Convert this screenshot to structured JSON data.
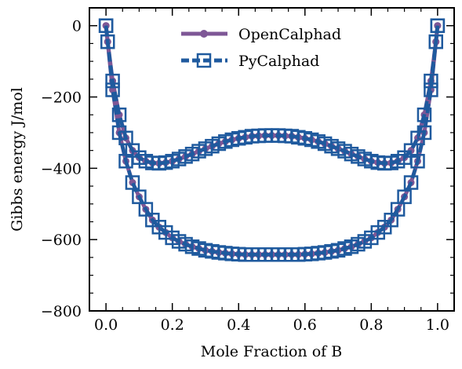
{
  "chart_data": {
    "type": "line",
    "xlabel": "Mole Fraction of B",
    "ylabel": "Gibbs energy  J/mol",
    "xlim": [
      -0.05,
      1.05
    ],
    "ylim": [
      -800,
      50
    ],
    "xticks": [
      0.0,
      0.2,
      0.4,
      0.6,
      0.8,
      1.0
    ],
    "xtick_labels": [
      "0.0",
      "0.2",
      "0.4",
      "0.6",
      "0.8",
      "1.0"
    ],
    "yticks": [
      0,
      -200,
      -400,
      -600,
      -800
    ],
    "ytick_labels": [
      "0",
      "−200",
      "−400",
      "−600",
      "−800"
    ],
    "grid": false,
    "legend_position": "top-center",
    "x": [
      0.0,
      0.005,
      0.02,
      0.04,
      0.06,
      0.08,
      0.1,
      0.12,
      0.14,
      0.16,
      0.18,
      0.2,
      0.22,
      0.24,
      0.26,
      0.28,
      0.3,
      0.32,
      0.34,
      0.36,
      0.38,
      0.4,
      0.42,
      0.44,
      0.46,
      0.48,
      0.5,
      0.52,
      0.54,
      0.56,
      0.58,
      0.6,
      0.62,
      0.64,
      0.66,
      0.68,
      0.7,
      0.72,
      0.74,
      0.76,
      0.78,
      0.8,
      0.82,
      0.84,
      0.86,
      0.88,
      0.9,
      0.92,
      0.94,
      0.96,
      0.98,
      0.995,
      1.0
    ],
    "series": [
      {
        "name": "OpenCalphad",
        "color": "#7e5796",
        "marker": "circle",
        "curves": [
          [
            0,
            -45,
            -155,
            -250,
            -315,
            -350,
            -370,
            -380,
            -385,
            -386,
            -384,
            -380,
            -374,
            -367,
            -360,
            -352,
            -345,
            -338,
            -331,
            -325,
            -320,
            -316,
            -313,
            -310,
            -309,
            -308,
            -308,
            -308,
            -309,
            -310,
            -313,
            -316,
            -320,
            -325,
            -331,
            -338,
            -345,
            -352,
            -360,
            -367,
            -374,
            -380,
            -384,
            -386,
            -385,
            -380,
            -370,
            -350,
            -315,
            -250,
            -155,
            -45,
            0
          ],
          [
            0,
            -45,
            -180,
            -300,
            -380,
            -440,
            -480,
            -515,
            -545,
            -565,
            -580,
            -595,
            -605,
            -613,
            -620,
            -625,
            -630,
            -633,
            -636,
            -638,
            -640,
            -641,
            -642,
            -642,
            -642,
            -642,
            -642,
            -642,
            -642,
            -642,
            -642,
            -641,
            -640,
            -638,
            -636,
            -633,
            -630,
            -625,
            -620,
            -613,
            -605,
            -595,
            -580,
            -565,
            -545,
            -515,
            -480,
            -440,
            -380,
            -300,
            -180,
            -45,
            0
          ]
        ]
      },
      {
        "name": "PyCalphad",
        "color": "#1f5a9e",
        "marker": "square",
        "curves": [
          [
            0,
            -45,
            -155,
            -250,
            -315,
            -350,
            -370,
            -380,
            -385,
            -386,
            -384,
            -380,
            -374,
            -367,
            -360,
            -352,
            -345,
            -338,
            -331,
            -325,
            -320,
            -316,
            -313,
            -310,
            -309,
            -308,
            -308,
            -308,
            -309,
            -310,
            -313,
            -316,
            -320,
            -325,
            -331,
            -338,
            -345,
            -352,
            -360,
            -367,
            -374,
            -380,
            -384,
            -386,
            -385,
            -380,
            -370,
            -350,
            -315,
            -250,
            -155,
            -45,
            0
          ],
          [
            0,
            -45,
            -180,
            -300,
            -380,
            -440,
            -480,
            -515,
            -545,
            -565,
            -580,
            -595,
            -605,
            -613,
            -620,
            -625,
            -630,
            -633,
            -636,
            -638,
            -640,
            -641,
            -642,
            -642,
            -642,
            -642,
            -642,
            -642,
            -642,
            -642,
            -642,
            -641,
            -640,
            -638,
            -636,
            -633,
            -630,
            -625,
            -620,
            -613,
            -605,
            -595,
            -580,
            -565,
            -545,
            -515,
            -480,
            -440,
            -380,
            -300,
            -180,
            -45,
            0
          ]
        ]
      }
    ]
  }
}
